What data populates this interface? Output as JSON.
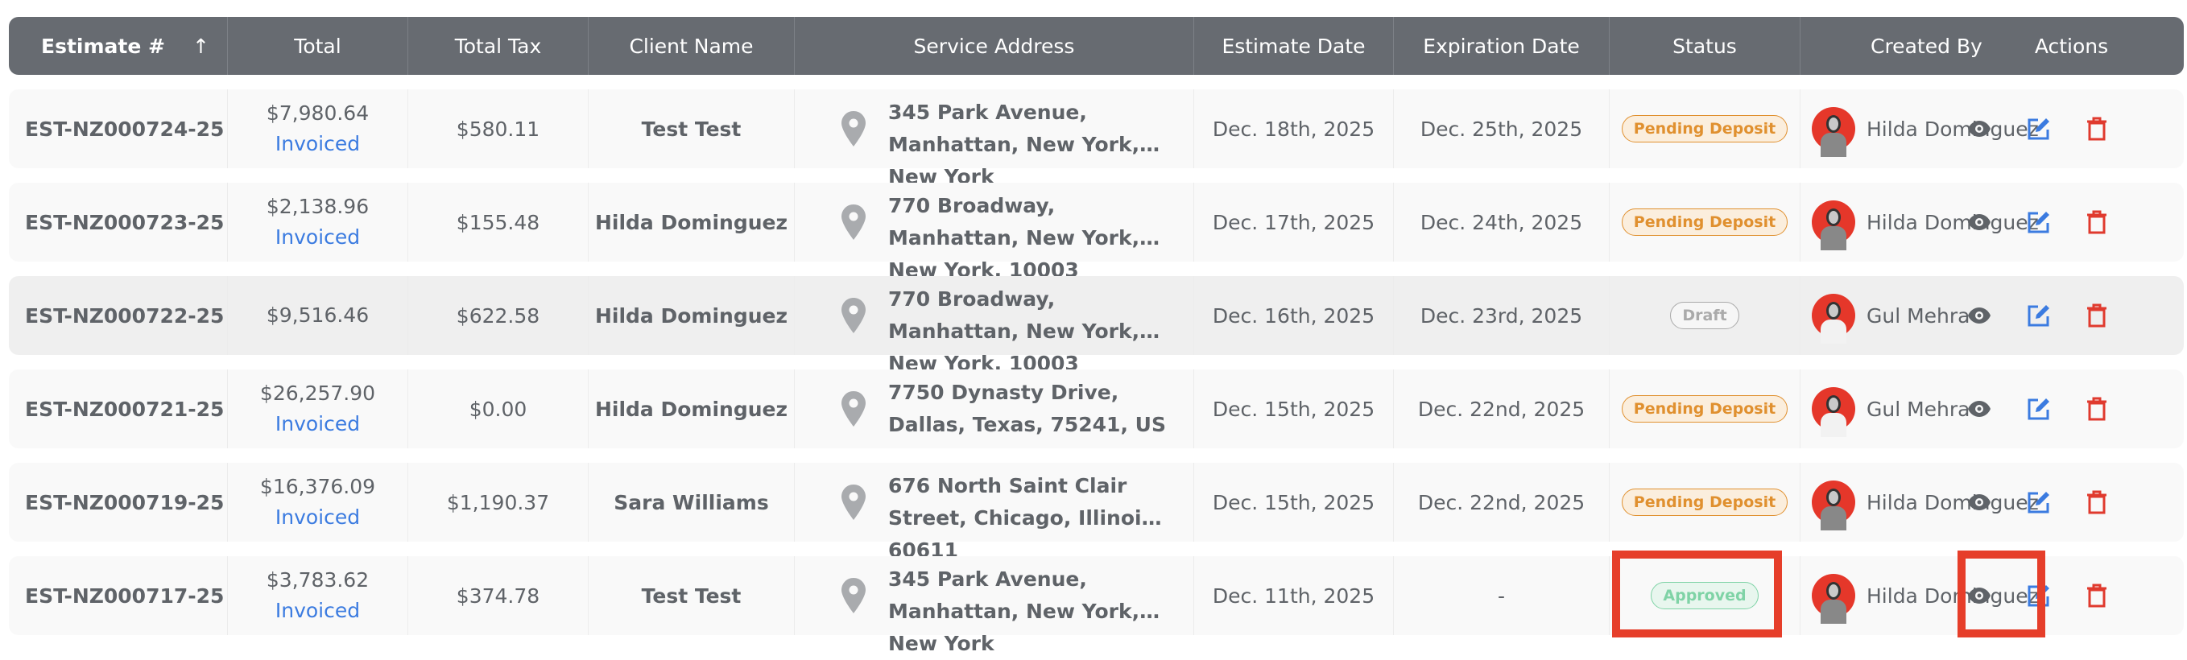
{
  "headers": {
    "estimate": "Estimate #",
    "sort_arrow": "↑",
    "total": "Total",
    "total_tax": "Total Tax",
    "client": "Client Name",
    "address": "Service Address",
    "estimate_date": "Estimate Date",
    "expiration_date": "Expiration Date",
    "status": "Status",
    "created_by": "Created By",
    "actions": "Actions"
  },
  "status_colors": {
    "Pending Deposit": {
      "fg": "#e0902f",
      "bg": "#fbeedd"
    },
    "Draft": {
      "fg": "#aaaaaa",
      "bg": "#f6f6f6"
    },
    "Approved": {
      "fg": "#7fd3a6",
      "bg": "#e8f6ee"
    }
  },
  "rows": [
    {
      "id": "EST-NZ000724-25",
      "total": "$7,980.64",
      "invoiced": "Invoiced",
      "tax": "$580.11",
      "client": "Test Test",
      "address": "345 Park Avenue, Manhattan, New York, New York",
      "est_date": "Dec. 18th, 2025",
      "exp_date": "Dec. 25th, 2025",
      "status": "Pending Deposit",
      "created_by": "Hilda Dominguez"
    },
    {
      "id": "EST-NZ000723-25",
      "total": "$2,138.96",
      "invoiced": "Invoiced",
      "tax": "$155.48",
      "client": "Hilda Dominguez",
      "address": "770 Broadway, Manhattan, New York, New York, 10003",
      "est_date": "Dec. 17th, 2025",
      "exp_date": "Dec. 24th, 2025",
      "status": "Pending Deposit",
      "created_by": "Hilda Dominguez"
    },
    {
      "id": "EST-NZ000722-25",
      "total": "$9,516.46",
      "invoiced": "",
      "tax": "$622.58",
      "client": "Hilda Dominguez",
      "address": "770 Broadway, Manhattan, New York, New York, 10003",
      "est_date": "Dec. 16th, 2025",
      "exp_date": "Dec. 23rd, 2025",
      "status": "Draft",
      "created_by": "Gul Mehra"
    },
    {
      "id": "EST-NZ000721-25",
      "total": "$26,257.90",
      "invoiced": "Invoiced",
      "tax": "$0.00",
      "client": "Hilda Dominguez",
      "address": "7750 Dynasty Drive, Dallas, Texas, 75241, US",
      "est_date": "Dec. 15th, 2025",
      "exp_date": "Dec. 22nd, 2025",
      "status": "Pending Deposit",
      "created_by": "Gul Mehra"
    },
    {
      "id": "EST-NZ000719-25",
      "total": "$16,376.09",
      "invoiced": "Invoiced",
      "tax": "$1,190.37",
      "client": "Sara Williams",
      "address": "676 North Saint Clair Street, Chicago, Illinois, 60611",
      "est_date": "Dec. 15th, 2025",
      "exp_date": "Dec. 22nd, 2025",
      "status": "Pending Deposit",
      "created_by": "Hilda Dominguez"
    },
    {
      "id": "EST-NZ000717-25",
      "total": "$3,783.62",
      "invoiced": "Invoiced",
      "tax": "$374.78",
      "client": "Test Test",
      "address": "345 Park Avenue, Manhattan, New York, New York",
      "est_date": "Dec. 11th, 2025",
      "exp_date": "-",
      "status": "Approved",
      "created_by": "Hilda Dominguez"
    }
  ]
}
